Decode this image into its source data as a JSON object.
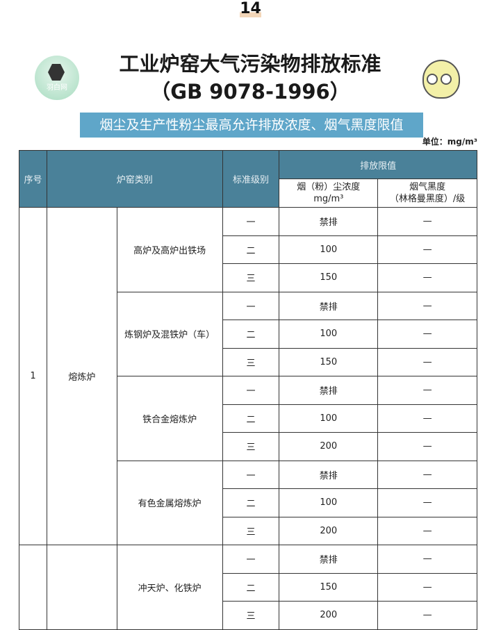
{
  "page_number": "14",
  "logo": {
    "text": "羽白网"
  },
  "title": {
    "line1": "工业炉窑大气污染物排放标准",
    "line2": "（GB 9078-1996）"
  },
  "banner": "烟尘及生产性粉尘最高允许排放浓度、烟气黑度限值",
  "unit": "单位：mg/m³",
  "table": {
    "headers": {
      "no": "序号",
      "category": "炉窑类别",
      "level": "标准级别",
      "limits": "排放限值",
      "dust": "烟（粉）尘浓度",
      "dust_unit": "mg/m³",
      "smoke": "烟气黑度",
      "smoke_unit": "（林格曼黑度）/级"
    },
    "groups": [
      {
        "no": "1",
        "category": "熔炼炉",
        "subs": [
          {
            "name": "高炉及高炉出铁场",
            "rows": [
              [
                "一",
                "禁排",
                "—"
              ],
              [
                "二",
                "100",
                "—"
              ],
              [
                "三",
                "150",
                "—"
              ]
            ]
          },
          {
            "name": "炼钢炉及混铁炉（车）",
            "rows": [
              [
                "一",
                "禁排",
                "—"
              ],
              [
                "二",
                "100",
                "—"
              ],
              [
                "三",
                "150",
                "—"
              ]
            ]
          },
          {
            "name": "铁合金熔炼炉",
            "rows": [
              [
                "一",
                "禁排",
                "—"
              ],
              [
                "二",
                "100",
                "—"
              ],
              [
                "三",
                "200",
                "—"
              ]
            ]
          },
          {
            "name": "有色金属熔炼炉",
            "rows": [
              [
                "一",
                "禁排",
                "—"
              ],
              [
                "二",
                "100",
                "—"
              ],
              [
                "三",
                "200",
                "—"
              ]
            ]
          }
        ]
      },
      {
        "no": "",
        "category": "",
        "subs": [
          {
            "name": "冲天炉、化铁炉",
            "rows": [
              [
                "一",
                "禁排",
                "—"
              ],
              [
                "二",
                "150",
                "—"
              ],
              [
                "三",
                "200",
                "—"
              ]
            ]
          }
        ]
      }
    ]
  }
}
